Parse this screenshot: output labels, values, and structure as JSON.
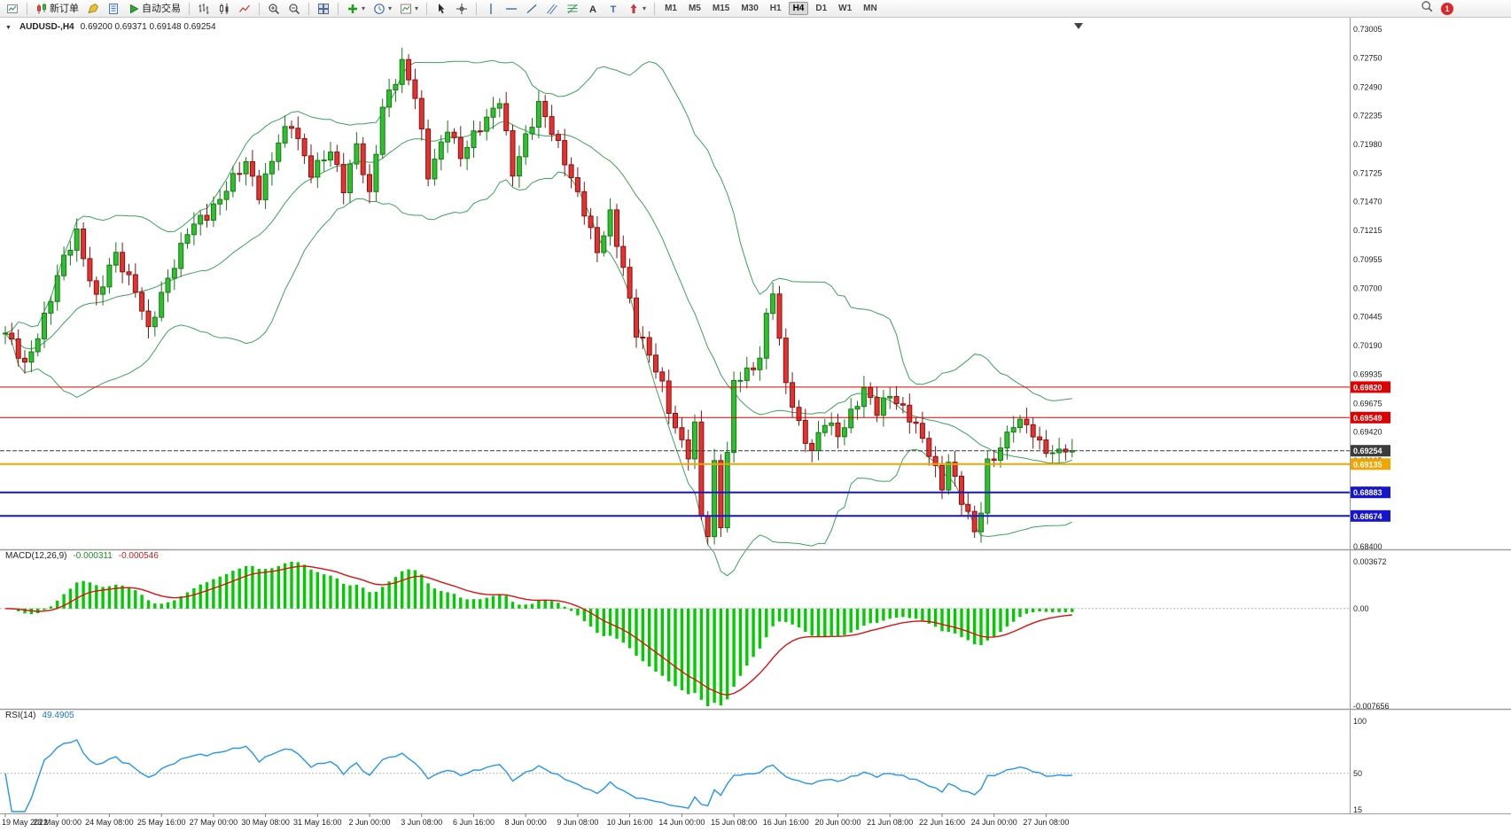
{
  "toolbar": {
    "groups": [
      {
        "items": [
          {
            "name": "new-chart",
            "kind": "chartdoc"
          }
        ]
      },
      {
        "items": [
          {
            "name": "new-order",
            "kind": "neworder",
            "label": "新订单"
          },
          {
            "name": "metaeditor",
            "kind": "editor"
          },
          {
            "name": "data-window",
            "kind": "bluedoc"
          },
          {
            "name": "auto-trading",
            "kind": "autotrade",
            "label": "自动交易"
          }
        ]
      },
      {
        "items": [
          {
            "name": "bars-chart",
            "kind": "bars"
          },
          {
            "name": "candlestick-chart",
            "kind": "candles"
          },
          {
            "name": "line-chart",
            "kind": "linechart"
          }
        ]
      },
      {
        "items": [
          {
            "name": "zoom-in",
            "kind": "zoomin"
          },
          {
            "name": "zoom-out",
            "kind": "zoomout"
          }
        ]
      },
      {
        "items": [
          {
            "name": "tile-windows",
            "kind": "tile"
          }
        ]
      },
      {
        "items": [
          {
            "name": "indicators",
            "kind": "indicators",
            "dd": true
          },
          {
            "name": "periods",
            "kind": "periods",
            "dd": true
          },
          {
            "name": "templates",
            "kind": "templates",
            "dd": true
          }
        ]
      },
      {
        "items": [
          {
            "name": "cursor",
            "kind": "cursor"
          },
          {
            "name": "crosshair",
            "kind": "cross"
          }
        ]
      },
      {
        "items": [
          {
            "name": "vertical-line",
            "kind": "vline"
          },
          {
            "name": "horizontal-line",
            "kind": "hline"
          },
          {
            "name": "trendline",
            "kind": "trend"
          },
          {
            "name": "equidistant-channel",
            "kind": "channel"
          },
          {
            "name": "fibonacci-retracement",
            "kind": "fibo"
          },
          {
            "name": "text",
            "kind": "textA"
          },
          {
            "name": "text-label",
            "kind": "textT"
          },
          {
            "name": "arrows",
            "kind": "arrows",
            "dd": true
          }
        ]
      }
    ],
    "timeframes": [
      "M1",
      "M5",
      "M15",
      "M30",
      "H1",
      "H4",
      "D1",
      "W1",
      "MN"
    ],
    "active_timeframe": "H4",
    "badge": "1"
  },
  "chart": {
    "symbol_label": "AUDUSD-,H4",
    "ohlc_text": "0.69200 0.69371 0.69148 0.69254"
  },
  "macd": {
    "label": "MACD(12,26,9)",
    "value_main": "-0.000311",
    "value_signal": "-0.000546"
  },
  "rsi": {
    "label": "RSI(14)",
    "value_text": "49.4905"
  },
  "chart_data": {
    "type": "candlestick",
    "symbol": "AUDUSD-",
    "timeframe": "H4",
    "title": "AUDUSD-,H4",
    "ohlc_current": {
      "open": 0.692,
      "high": 0.69371,
      "low": 0.69148,
      "close": 0.69254
    },
    "last_close": 0.69254,
    "n_candles": 165,
    "y_axis": {
      "min": 0.684,
      "max": 0.73005,
      "ticks": [
        "0.73005",
        "0.72750",
        "0.72490",
        "0.72235",
        "0.71980",
        "0.71725",
        "0.71470",
        "0.71215",
        "0.70955",
        "0.70700",
        "0.70445",
        "0.70190",
        "0.69935",
        "0.69675",
        "0.69420",
        "0.69165",
        "0.68910",
        "0.68655",
        "0.68400"
      ]
    },
    "x_axis": {
      "labels": [
        "19 May 2022",
        "23 May 00:00",
        "24 May 08:00",
        "25 May 16:00",
        "27 May 00:00",
        "30 May 08:00",
        "31 May 16:00",
        "2 Jun 00:00",
        "3 Jun 08:00",
        "6 Jun 16:00",
        "8 Jun 00:00",
        "9 Jun 08:00",
        "10 Jun 16:00",
        "14 Jun 00:00",
        "15 Jun 08:00",
        "16 Jun 16:00",
        "20 Jun 00:00",
        "21 Jun 08:00",
        "22 Jun 16:00",
        "24 Jun 00:00",
        "27 Jun 08:00"
      ],
      "candles_per_label": 8
    },
    "price_keypoints": [
      [
        0,
        0.703
      ],
      [
        3,
        0.7
      ],
      [
        6,
        0.7045
      ],
      [
        9,
        0.7095
      ],
      [
        11,
        0.712
      ],
      [
        14,
        0.706
      ],
      [
        17,
        0.71
      ],
      [
        20,
        0.707
      ],
      [
        22,
        0.703
      ],
      [
        25,
        0.708
      ],
      [
        28,
        0.712
      ],
      [
        31,
        0.7135
      ],
      [
        34,
        0.716
      ],
      [
        37,
        0.718
      ],
      [
        39,
        0.7155
      ],
      [
        42,
        0.72
      ],
      [
        44,
        0.7215
      ],
      [
        47,
        0.7175
      ],
      [
        50,
        0.719
      ],
      [
        52,
        0.716
      ],
      [
        54,
        0.72
      ],
      [
        56,
        0.715
      ],
      [
        58,
        0.723
      ],
      [
        61,
        0.7272
      ],
      [
        63,
        0.724
      ],
      [
        65,
        0.717
      ],
      [
        68,
        0.7215
      ],
      [
        70,
        0.7185
      ],
      [
        73,
        0.7215
      ],
      [
        76,
        0.7238
      ],
      [
        78,
        0.717
      ],
      [
        80,
        0.7205
      ],
      [
        82,
        0.7235
      ],
      [
        85,
        0.7195
      ],
      [
        87,
        0.717
      ],
      [
        89,
        0.714
      ],
      [
        91,
        0.71
      ],
      [
        93,
        0.7135
      ],
      [
        95,
        0.709
      ],
      [
        97,
        0.703
      ],
      [
        99,
        0.701
      ],
      [
        101,
        0.6985
      ],
      [
        103,
        0.6945
      ],
      [
        105,
        0.692
      ],
      [
        106,
        0.6945
      ],
      [
        107,
        0.687
      ],
      [
        108,
        0.6852
      ],
      [
        109,
        0.6915
      ],
      [
        110,
        0.6862
      ],
      [
        111,
        0.692
      ],
      [
        112,
        0.6985
      ],
      [
        114,
        0.6995
      ],
      [
        116,
        0.701
      ],
      [
        117,
        0.7045
      ],
      [
        118,
        0.7068
      ],
      [
        119,
        0.702
      ],
      [
        120,
        0.6985
      ],
      [
        122,
        0.695
      ],
      [
        124,
        0.6925
      ],
      [
        126,
        0.695
      ],
      [
        128,
        0.694
      ],
      [
        130,
        0.696
      ],
      [
        132,
        0.6978
      ],
      [
        134,
        0.696
      ],
      [
        136,
        0.6978
      ],
      [
        138,
        0.6962
      ],
      [
        140,
        0.6945
      ],
      [
        142,
        0.6925
      ],
      [
        144,
        0.6895
      ],
      [
        145,
        0.6915
      ],
      [
        147,
        0.688
      ],
      [
        149,
        0.6855
      ],
      [
        150,
        0.6875
      ],
      [
        151,
        0.6915
      ],
      [
        153,
        0.6925
      ],
      [
        155,
        0.695
      ],
      [
        157,
        0.6952
      ],
      [
        159,
        0.693
      ],
      [
        161,
        0.692
      ],
      [
        163,
        0.693
      ],
      [
        164,
        0.6925
      ]
    ],
    "horizontal_levels": [
      {
        "price": 0.6982,
        "color": "#e00000",
        "width": 1,
        "style": "solid"
      },
      {
        "price": 0.69549,
        "color": "#e00000",
        "width": 1,
        "style": "solid"
      },
      {
        "price": 0.69135,
        "color": "#f0a500",
        "width": 2,
        "style": "solid"
      },
      {
        "price": 0.68883,
        "color": "#1515d0",
        "width": 2,
        "style": "solid"
      },
      {
        "price": 0.68674,
        "color": "#1515d0",
        "width": 2,
        "style": "solid"
      }
    ],
    "current_price_line": {
      "price": 0.69254,
      "color": "#3c3c3c",
      "style": "dashed"
    },
    "bollinger": {
      "period": 20,
      "deviation": 2,
      "color": "#3aa35c"
    },
    "candle_colors": {
      "up_fill": "#2fbf2f",
      "up_stroke": "#157a15",
      "down_fill": "#e23333",
      "down_stroke": "#8f0f0f"
    },
    "macd": {
      "params": [
        12,
        26,
        9
      ],
      "current_main": -0.000311,
      "current_signal": -0.000546,
      "range": [
        -0.007656,
        0.003672
      ],
      "axis_ticks": [
        "0.003672",
        "0.00",
        "-0.007656"
      ],
      "hist_color": "#00cc00",
      "signal_color": "#e01010"
    },
    "rsi": {
      "period": 14,
      "current": 49.4905,
      "axis_ticks": [
        "100",
        "50",
        "15"
      ],
      "level": 50,
      "color": "#2196f3"
    }
  }
}
